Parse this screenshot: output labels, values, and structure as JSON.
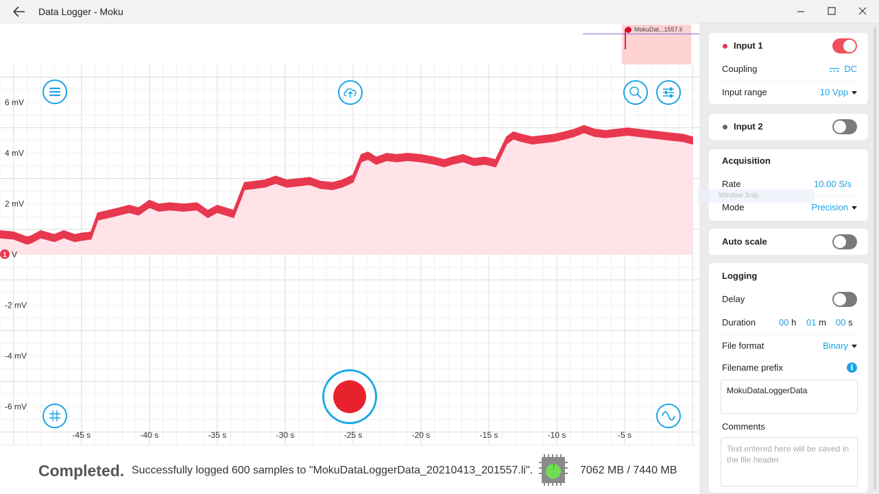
{
  "window": {
    "title": "Data Logger - Moku",
    "back_icon": "arrow-left-icon",
    "controls": [
      "minimize-icon",
      "maximize-icon",
      "close-icon"
    ]
  },
  "overview": {
    "trace_label": "MokuDat...1557.li"
  },
  "plot": {
    "trace_color": "#e8384f",
    "fill_color": "#ffe3e8",
    "channel_marker": "1",
    "y_ticks": [
      "6 mV",
      "4 mV",
      "2 mV",
      "V",
      "-2 mV",
      "-4 mV",
      "-6 mV"
    ],
    "x_ticks": [
      "-45 s",
      "-40 s",
      "-35 s",
      "-30 s",
      "-25 s",
      "-20 s",
      "-15 s",
      "-10 s",
      "-5 s"
    ]
  },
  "chart_data": {
    "type": "area",
    "xlabel": "",
    "ylabel": "",
    "xlim": [
      -51,
      0.5
    ],
    "ylim": [
      -7.5,
      7.5
    ],
    "x_ticks": [
      -45,
      -40,
      -35,
      -30,
      -25,
      -20,
      -15,
      -10,
      -5
    ],
    "y_ticks": [
      6,
      4,
      2,
      0,
      -2,
      -4,
      -6
    ],
    "grid": true,
    "series": [
      {
        "x": [
          -51,
          -50,
          -49,
          -48.7,
          -48,
          -47,
          -46.3,
          -45.5,
          -45,
          -44.3,
          -43.8,
          -43,
          -42.2,
          -41.5,
          -40.8,
          -40,
          -39.3,
          -38.5,
          -37.5,
          -36.5,
          -35.7,
          -35,
          -34.4,
          -33.8,
          -33,
          -32.2,
          -31.5,
          -30.7,
          -29.9,
          -29,
          -28.2,
          -27.4,
          -26.5,
          -25.8,
          -25,
          -24.4,
          -23.9,
          -23.3,
          -22.5,
          -21.8,
          -21,
          -20,
          -19,
          -18.3,
          -17.7,
          -16.9,
          -16.1,
          -15.3,
          -14.5,
          -13.7,
          -13.2,
          -12.6,
          -11.8,
          -11,
          -10.2,
          -9.4,
          -8.7,
          -8,
          -7.2,
          -6.4,
          -5.6,
          -4.8,
          -4,
          -3.2,
          -2.4,
          -1.6,
          -0.7,
          0
        ],
        "y": [
          0.8,
          0.75,
          0.55,
          0.6,
          0.8,
          0.65,
          0.8,
          0.65,
          0.7,
          0.75,
          1.5,
          1.6,
          1.7,
          1.8,
          1.7,
          2.0,
          1.85,
          1.9,
          1.85,
          1.9,
          1.6,
          1.8,
          1.7,
          1.6,
          2.7,
          2.75,
          2.8,
          2.95,
          2.8,
          2.85,
          2.9,
          2.75,
          2.7,
          2.8,
          3.0,
          3.8,
          3.9,
          3.7,
          3.85,
          3.8,
          3.85,
          3.8,
          3.7,
          3.6,
          3.7,
          3.8,
          3.65,
          3.7,
          3.6,
          4.5,
          4.7,
          4.6,
          4.5,
          4.55,
          4.6,
          4.7,
          4.8,
          4.95,
          4.8,
          4.75,
          4.8,
          4.85,
          4.8,
          4.75,
          4.7,
          4.65,
          4.6,
          4.5
        ]
      }
    ]
  },
  "status": {
    "word": "Completed.",
    "message": "Successfully logged 600 samples to \"MokuDataLoggerData_20210413_201557.li\".",
    "storage": "7062 MB / 7440 MB",
    "chip_icon": "memory-chip-icon"
  },
  "panel": {
    "input1": {
      "title": "Input 1",
      "color": "#e8384f",
      "enabled": true,
      "coupling_label": "Coupling",
      "coupling_value": "DC",
      "range_label": "Input range",
      "range_value": "10 Vpp"
    },
    "input2": {
      "title": "Input 2",
      "color": "#666666",
      "enabled": false
    },
    "acquisition": {
      "title": "Acquisition",
      "rate_label": "Rate",
      "rate_value": "10.00 S/s",
      "mode_label": "Mode",
      "mode_value": "Precision"
    },
    "autoscale": {
      "title": "Auto scale",
      "enabled": false
    },
    "logging": {
      "title": "Logging",
      "delay_label": "Delay",
      "delay_enabled": false,
      "duration_label": "Duration",
      "hours": "00",
      "hours_unit": "h",
      "minutes": "01",
      "minutes_unit": "m",
      "seconds": "00",
      "seconds_unit": "s",
      "format_label": "File format",
      "format_value": "Binary",
      "prefix_label": "Filename prefix",
      "prefix_value": "MokuDataLoggerData",
      "comments_label": "Comments",
      "comments_placeholder": "Text entered here will be saved in the file header"
    },
    "watermark": "Window Snip"
  }
}
